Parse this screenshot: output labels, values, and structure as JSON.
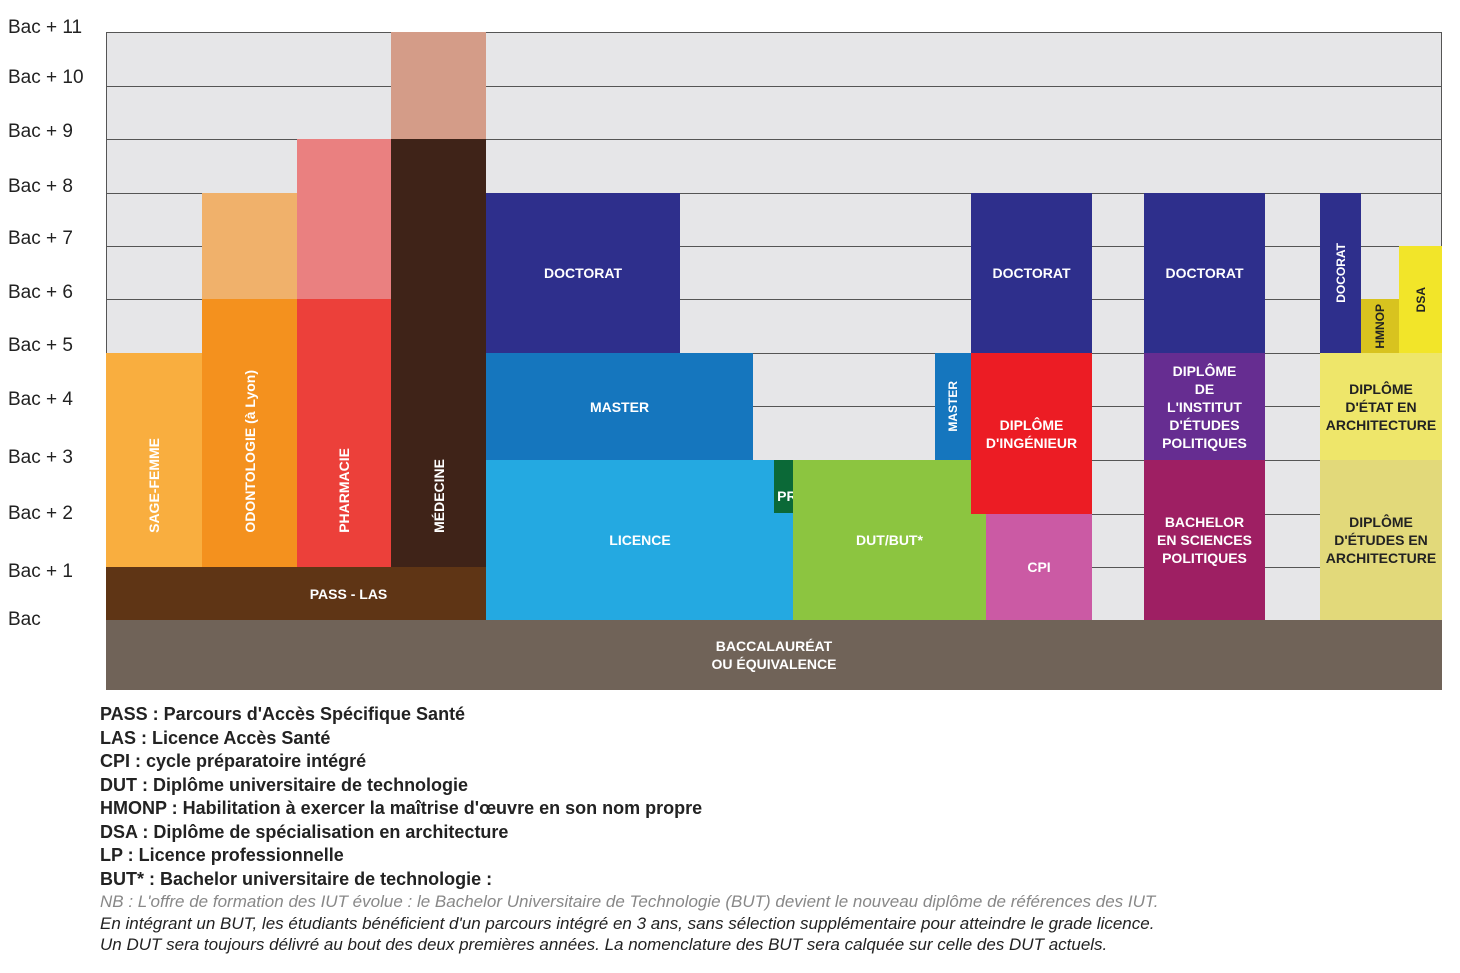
{
  "levels": [
    "Bac",
    "Bac + 1",
    "Bac + 2",
    "Bac + 3",
    "Bac + 4",
    "Bac + 5",
    "Bac + 6",
    "Bac + 7",
    "Bac + 8",
    "Bac + 9",
    "Bac + 10",
    "Bac + 11"
  ],
  "blocks": [
    {
      "id": "sage-femme",
      "label": "SAGE-FEMME",
      "color": "#f9ae3f",
      "vertical": true
    },
    {
      "id": "odontologie-a",
      "label": "",
      "color": "#f0b16b"
    },
    {
      "id": "odontologie",
      "label": "ODONTOLOGIE (à Lyon)",
      "color": "#f4911e",
      "vertical": true
    },
    {
      "id": "pharmacie-a",
      "label": "",
      "color": "#ea8080"
    },
    {
      "id": "pharmacie",
      "label": "PHARMACIE",
      "color": "#ec403a",
      "vertical": true
    },
    {
      "id": "medecine-a",
      "label": "",
      "color": "#d49c88"
    },
    {
      "id": "medecine",
      "label": "MÉDECINE",
      "color": "#3f2318",
      "vertical": true
    },
    {
      "id": "pass-las",
      "label": "PASS - LAS",
      "color": "#5f3515"
    },
    {
      "id": "baccalaureat",
      "label": "BACCALAURÉAT\nOU ÉQUIVALENCE",
      "color": "#706358"
    },
    {
      "id": "doctorat-univ",
      "label": "DOCTORAT",
      "color": "#2e2f8c"
    },
    {
      "id": "master",
      "label": "MASTER",
      "color": "#1576be"
    },
    {
      "id": "licence",
      "label": "LICENCE",
      "color": "#24a9e1"
    },
    {
      "id": "licence-pro",
      "label": "LICENCE\nPROFESSIONNELLE",
      "color": "#0b6937"
    },
    {
      "id": "dut-but",
      "label": "DUT/BUT*",
      "color": "#8cc540"
    },
    {
      "id": "master-vertical",
      "label": "MASTER",
      "color": "#1576be",
      "vertical": true
    },
    {
      "id": "doctorat-ing",
      "label": "DOCTORAT",
      "color": "#2e2f8c"
    },
    {
      "id": "diplome-ingenieur",
      "label": "DIPLÔME\nD'INGÉNIEUR",
      "color": "#ec1c24"
    },
    {
      "id": "cpi",
      "label": "CPI",
      "color": "#cb5aa4"
    },
    {
      "id": "doctorat-iep",
      "label": "DOCTORAT",
      "color": "#2e2f8c"
    },
    {
      "id": "diplome-iep",
      "label": "DIPLÔME\nDE\nL'INSTITUT\nD'ÉTUDES\nPOLITIQUES",
      "color": "#662d91"
    },
    {
      "id": "bachelor-sp",
      "label": "BACHELOR\nEN SCIENCES\nPOLITIQUES",
      "color": "#9e1f63"
    },
    {
      "id": "docorat-archi",
      "label": "DOCORAT",
      "color": "#2e2f8c",
      "vertical": true
    },
    {
      "id": "hmnop",
      "label": "HMNOP",
      "color": "#d8c31f",
      "vertical": true,
      "dark": true
    },
    {
      "id": "dsa",
      "label": "DSA",
      "color": "#f2e529",
      "vertical": true,
      "dark": true
    },
    {
      "id": "dea",
      "label": "DIPLÔME\nD'ÉTAT EN\nARCHITECTURE",
      "color": "#eee66a",
      "dark": true
    },
    {
      "id": "deea",
      "label": "DIPLÔME\nD'ÉTUDES EN\nARCHITECTURE",
      "color": "#e2d97a",
      "dark": true
    }
  ],
  "legend": [
    "PASS : Parcours d'Accès Spécifique Santé",
    "LAS : Licence Accès Santé",
    "CPI : cycle préparatoire intégré",
    "DUT : Diplôme universitaire de technologie",
    "HMONP : Habilitation à exercer la maîtrise d'œuvre en son nom propre",
    "DSA : Diplôme de spécialisation en architecture",
    "LP : Licence professionnelle",
    "BUT* : Bachelor universitaire de technologie :"
  ],
  "notes": [
    "NB : L'offre de formation des IUT évolue : le Bachelor Universitaire de Technologie (BUT) devient le nouveau diplôme de références des IUT.",
    "En intégrant un BUT, les étudiants bénéficient d'un parcours intégré en 3 ans, sans sélection supplémentaire pour atteindre le grade licence.",
    "Un DUT sera toujours délivré au bout des deux premières années. La nomenclature des BUT sera calquée sur celle des DUT actuels."
  ]
}
